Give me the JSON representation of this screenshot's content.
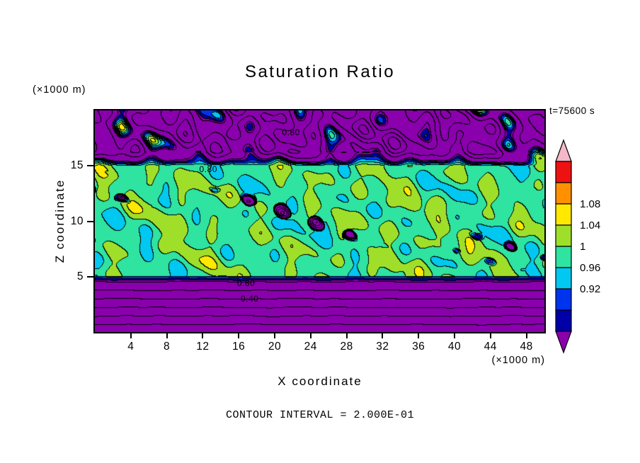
{
  "title": "Saturation Ratio",
  "time_label": "t=75600 s",
  "footer": "CONTOUR INTERVAL = 2.000E-01",
  "axes": {
    "x_label": "X coordinate",
    "x_unit": "(×1000 m)",
    "z_label": "Z coordinate",
    "z_unit": "(×1000 m)",
    "x_ticks": [
      4,
      8,
      12,
      16,
      20,
      24,
      28,
      32,
      36,
      40,
      44,
      48
    ],
    "z_ticks": [
      5,
      10,
      15
    ],
    "x_range": [
      0,
      50
    ],
    "z_range": [
      0,
      20
    ]
  },
  "chart_data": {
    "type": "heatmap",
    "title": "Saturation Ratio",
    "xlabel": "X coordinate (×1000 m)",
    "ylabel": "Z coordinate (×1000 m)",
    "time_annotation": "t=75600 s",
    "x_range": [
      0,
      50
    ],
    "z_range": [
      0,
      20
    ],
    "contour_interval": 0.2,
    "contour_interval_label": "CONTOUR INTERVAL = 2.000E-01",
    "fill_levels": [
      0.84,
      0.88,
      0.92,
      0.96,
      1.0,
      1.04,
      1.08,
      1.12
    ],
    "fill_colors": [
      "#8a00ad",
      "#0000a8",
      "#0033ee",
      "#00c8f0",
      "#2fe3a1",
      "#9fdf2a",
      "#ffe900",
      "#ff9100",
      "#ee1111"
    ],
    "colorbar": {
      "top_arrow_color": "#f4b8c8",
      "bottom_arrow_color": "#8a00ad",
      "segments": [
        {
          "color": "#ee1111",
          "label_below": ""
        },
        {
          "color": "#ff9100",
          "label_below": "1.08"
        },
        {
          "color": "#ffe900",
          "label_below": "1.04"
        },
        {
          "color": "#9fdf2a",
          "label_below": "1"
        },
        {
          "color": "#2fe3a1",
          "label_below": "0.96"
        },
        {
          "color": "#00c8f0",
          "label_below": "0.92"
        },
        {
          "color": "#0033ee",
          "label_below": ""
        },
        {
          "color": "#0000a8",
          "label_below": ""
        }
      ]
    },
    "contour_labels": [
      {
        "text": "0.80",
        "x": 22.0,
        "z": 18.0
      },
      {
        "text": "0.80",
        "x": 12.8,
        "z": 14.7
      },
      {
        "text": "0.80",
        "x": 17.0,
        "z": 4.4
      },
      {
        "text": "0.40",
        "x": 17.4,
        "z": 3.0
      }
    ],
    "field_regions": [
      {
        "z_range": [
          16.5,
          20
        ],
        "description": "low saturation band, S mostly below 0.84 (purple) with scattered 0.96-1.0 patches and wiggly 0.2-interval contour lines"
      },
      {
        "z_range": [
          5,
          16.5
        ],
        "description": "near-saturated band, background S 0.96-1.0 with large 1.0-1.04 blobs and sparse specks below 0.92"
      },
      {
        "z_range": [
          0,
          5
        ],
        "description": "stratified layer, S decreasing from about 0.9 at z=5 to about 0.2 near z=0, nearly horizontal contours every 0.2"
      }
    ]
  }
}
